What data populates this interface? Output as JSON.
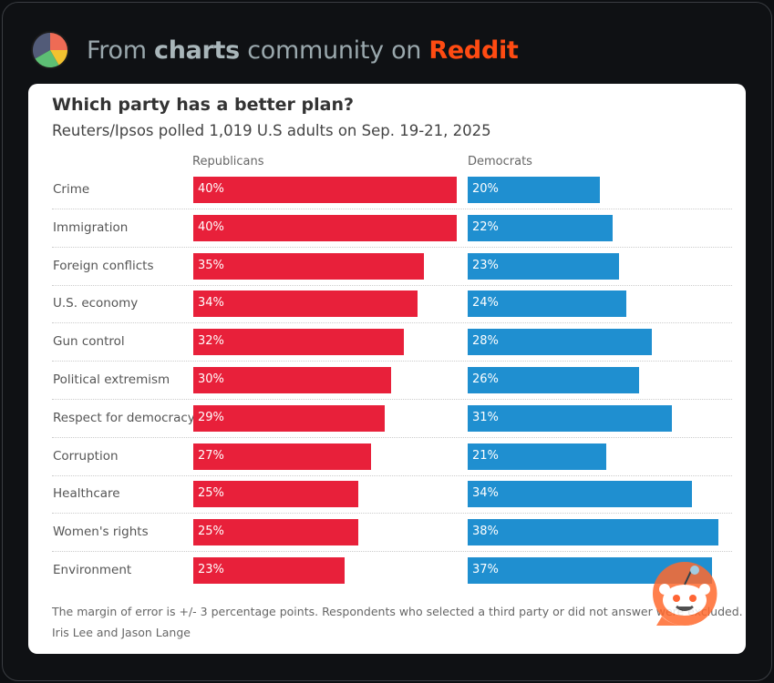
{
  "header": {
    "prefix": "From",
    "community": "charts",
    "middle": "community on",
    "site": "Reddit"
  },
  "chart_data": {
    "type": "bar",
    "title": "Which party has a better plan?",
    "subtitle": "Reuters/Ipsos polled 1,019 U.S adults on Sep. 19-21, 2025",
    "categories": [
      "Crime",
      "Immigration",
      "Foreign conflicts",
      "U.S. economy",
      "Gun control",
      "Political extremism",
      "Respect for democracy",
      "Corruption",
      "Healthcare",
      "Women's rights",
      "Environment"
    ],
    "series": [
      {
        "name": "Republicans",
        "color": "#e8203a",
        "values": [
          40,
          40,
          35,
          34,
          32,
          30,
          29,
          27,
          25,
          25,
          23
        ]
      },
      {
        "name": "Democrats",
        "color": "#1f8fd0",
        "values": [
          20,
          22,
          23,
          24,
          28,
          26,
          31,
          21,
          34,
          38,
          37
        ]
      }
    ],
    "unit": "%",
    "note": "The margin of error is +/- 3 percentage points. Respondents who selected a third party or did not answer were excluded.",
    "credit": "Iris Lee and Jason Lange"
  },
  "colors": {
    "background": "#0f1114",
    "reddit": "#ff4b12"
  }
}
